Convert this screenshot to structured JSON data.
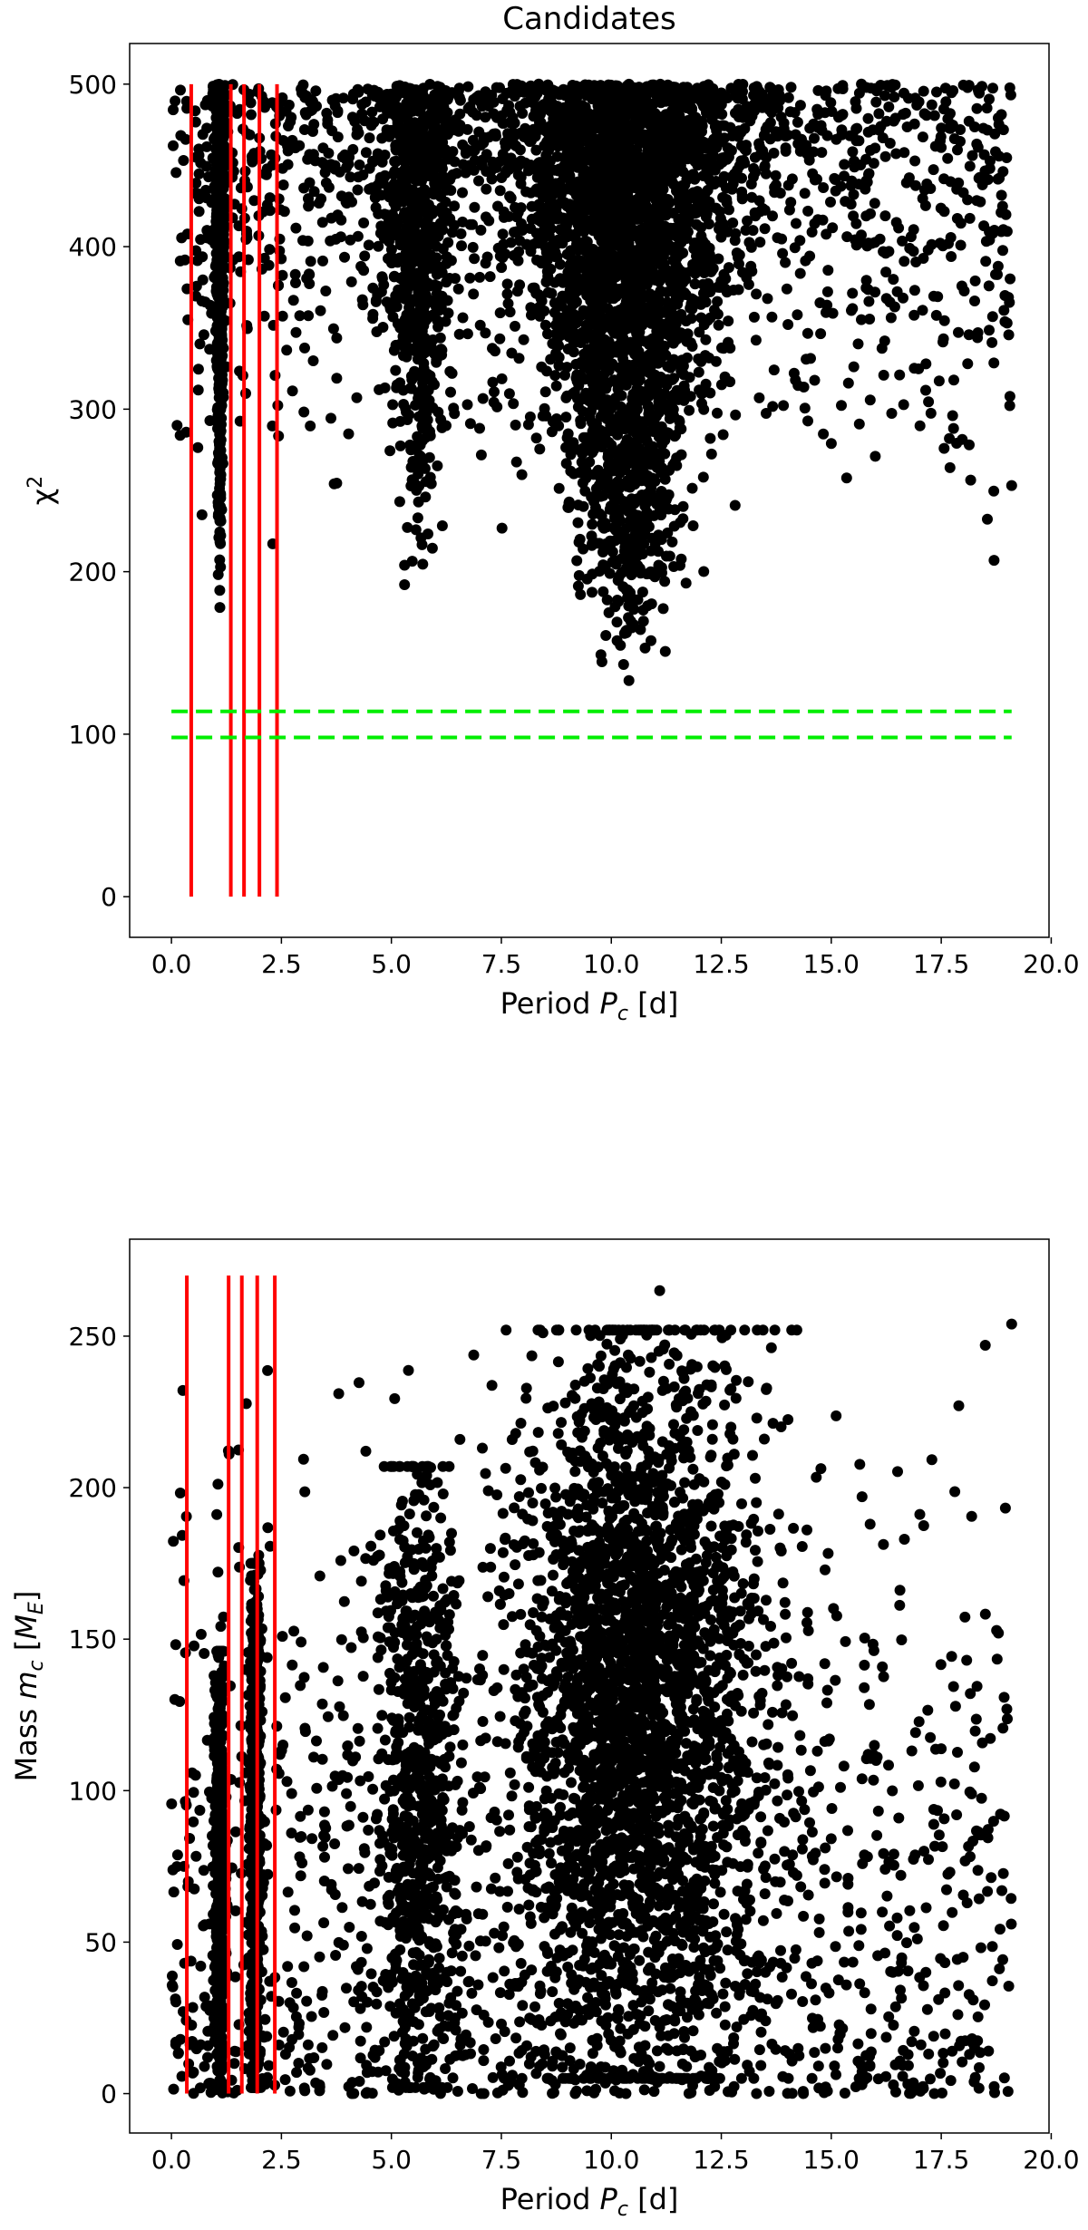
{
  "chart_data": [
    {
      "type": "scatter",
      "title": "Candidates",
      "xlabel": "Period P_c [d]",
      "ylabel": "χ²",
      "xlim": [
        -0.95,
        19.95
      ],
      "ylim": [
        -25,
        525
      ],
      "xticks": [
        0.0,
        2.5,
        5.0,
        7.5,
        10.0,
        12.5,
        15.0,
        17.5,
        20.0
      ],
      "xtick_labels": [
        "0.0",
        "2.5",
        "5.0",
        "7.5",
        "10.0",
        "12.5",
        "15.0",
        "17.5",
        "20.0"
      ],
      "yticks": [
        0,
        100,
        200,
        300,
        400,
        500
      ],
      "ytick_labels": [
        "0",
        "100",
        "200",
        "300",
        "400",
        "500"
      ],
      "grid": false,
      "marker_color": "#000000",
      "clusters": [
        {
          "x_center": 1.1,
          "x_spread": 0.06,
          "y_min": 178,
          "y_max": 500,
          "density": "high"
        },
        {
          "x_center": 5.6,
          "x_spread": 0.45,
          "y_min": 192,
          "y_max": 500,
          "density": "high"
        },
        {
          "x_center": 10.4,
          "x_spread": 1.3,
          "y_min": 133,
          "y_max": 500,
          "density": "very high"
        },
        {
          "x_range": [
            0.0,
            19.1
          ],
          "y_min": 200,
          "y_max": 500,
          "density": "sparse background"
        }
      ],
      "points": [
        {
          "x": 10.4,
          "y": 133
        },
        {
          "x": 10.3,
          "y": 162
        },
        {
          "x": 11.7,
          "y": 193
        },
        {
          "x": 5.3,
          "y": 192
        },
        {
          "x": 5.3,
          "y": 204
        },
        {
          "x": 18.7,
          "y": 207
        },
        {
          "x": 17.7,
          "y": 264
        },
        {
          "x": 16.0,
          "y": 271
        },
        {
          "x": 19.1,
          "y": 253
        },
        {
          "x": 3.7,
          "y": 254
        },
        {
          "x": 1.1,
          "y": 178
        }
      ],
      "vertical_lines": {
        "color": "#ff0000",
        "x": [
          0.45,
          1.35,
          1.65,
          2.0,
          2.4
        ],
        "y_from": 0,
        "y_to": 500
      },
      "horizontal_lines": {
        "color": "#00ee00",
        "style": "dashed",
        "y": [
          114,
          98
        ],
        "x_from": 0.0,
        "x_to": 19.1
      }
    },
    {
      "type": "scatter",
      "title": "",
      "xlabel": "Period P_c [d]",
      "ylabel": "Mass m_c [M_E]",
      "xlim": [
        -0.95,
        19.95
      ],
      "ylim": [
        -13,
        282
      ],
      "xticks": [
        0.0,
        2.5,
        5.0,
        7.5,
        10.0,
        12.5,
        15.0,
        17.5,
        20.0
      ],
      "xtick_labels": [
        "0.0",
        "2.5",
        "5.0",
        "7.5",
        "10.0",
        "12.5",
        "15.0",
        "17.5",
        "20.0"
      ],
      "yticks": [
        0,
        50,
        100,
        150,
        200,
        250
      ],
      "ytick_labels": [
        "0",
        "50",
        "100",
        "150",
        "200",
        "250"
      ],
      "grid": false,
      "marker_color": "#000000",
      "clusters": [
        {
          "x_center": 1.1,
          "x_spread": 0.06,
          "y_min": 2,
          "y_max": 146,
          "density": "high"
        },
        {
          "x_center": 1.9,
          "x_spread": 0.06,
          "y_min": 2,
          "y_max": 175,
          "density": "high"
        },
        {
          "x_center": 5.6,
          "x_spread": 0.45,
          "y_min": 2,
          "y_max": 207,
          "density": "high"
        },
        {
          "x_center": 10.5,
          "x_spread": 1.4,
          "y_min": 5,
          "y_max": 252,
          "density": "very high"
        },
        {
          "x_range": [
            0.0,
            19.1
          ],
          "y_min": 0,
          "y_max": 250,
          "density": "sparse background"
        }
      ],
      "points": [
        {
          "x": 11.1,
          "y": 265
        },
        {
          "x": 19.1,
          "y": 254
        },
        {
          "x": 18.5,
          "y": 247
        },
        {
          "x": 0.3,
          "y": 43
        },
        {
          "x": 0.1,
          "y": 17
        },
        {
          "x": 5.8,
          "y": 207
        },
        {
          "x": 1.9,
          "y": 175
        },
        {
          "x": 17.9,
          "y": 227
        },
        {
          "x": 15.7,
          "y": 197
        }
      ],
      "vertical_lines": {
        "color": "#ff0000",
        "x": [
          0.35,
          1.3,
          1.6,
          1.95,
          2.35
        ],
        "y_from": 0,
        "y_to": 270
      }
    }
  ]
}
